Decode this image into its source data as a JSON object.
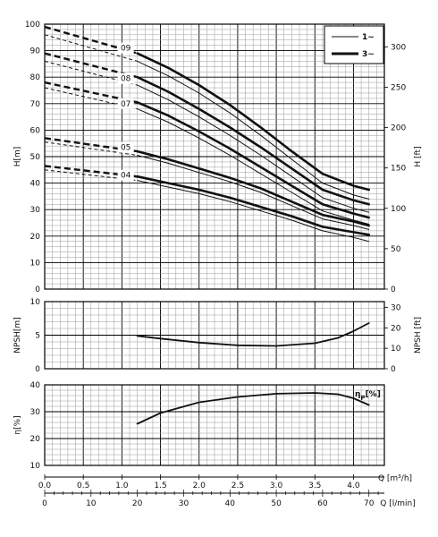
{
  "chart_data": [
    {
      "type": "line",
      "panel": "head",
      "ylabel_left": "H[m]",
      "ylabel_right": "H [ft]",
      "ylim": [
        0,
        100
      ],
      "yticks": [
        0,
        10,
        20,
        30,
        40,
        50,
        60,
        70,
        80,
        90,
        100
      ],
      "yticks_right": [
        0,
        50,
        100,
        150,
        200,
        250,
        300
      ],
      "xlim": [
        0,
        4.4
      ],
      "grid": true,
      "legend": {
        "position": "top-right",
        "entries": [
          {
            "label": "1~",
            "style": "thin"
          },
          {
            "label": "3~",
            "style": "thick"
          }
        ]
      },
      "series": [
        {
          "name": "09",
          "phase": "3~",
          "x": [
            1.2,
            1.6,
            2.0,
            2.4,
            2.8,
            3.2,
            3.6,
            4.0,
            4.2
          ],
          "y": [
            89,
            83.5,
            77,
            69.5,
            61,
            52,
            43.5,
            39,
            37.5
          ]
        },
        {
          "name": "09",
          "phase": "1~",
          "x": [
            1.2,
            1.6,
            2.0,
            2.4,
            2.8,
            3.2,
            3.6,
            4.0,
            4.2
          ],
          "y": [
            86,
            80.5,
            74,
            66.5,
            58,
            49,
            40,
            35.5,
            34
          ]
        },
        {
          "name": "08",
          "phase": "3~",
          "x": [
            1.2,
            1.6,
            2.0,
            2.4,
            2.8,
            3.2,
            3.6,
            4.0,
            4.2
          ],
          "y": [
            80,
            74.5,
            68,
            61,
            53.5,
            45.5,
            37.5,
            33.5,
            32
          ]
        },
        {
          "name": "08",
          "phase": "1~",
          "x": [
            1.2,
            1.6,
            2.0,
            2.4,
            2.8,
            3.2,
            3.6,
            4.0,
            4.2
          ],
          "y": [
            77,
            71.5,
            65,
            58,
            50.5,
            42.5,
            34.5,
            30.5,
            29
          ]
        },
        {
          "name": "07",
          "phase": "3~",
          "x": [
            1.2,
            1.6,
            2.0,
            2.4,
            2.8,
            3.2,
            3.6,
            4.0,
            4.2
          ],
          "y": [
            70.5,
            65.5,
            59.5,
            53,
            46,
            39,
            32,
            28.5,
            27
          ]
        },
        {
          "name": "07",
          "phase": "1~",
          "x": [
            1.2,
            1.6,
            2.0,
            2.4,
            2.8,
            3.2,
            3.6,
            4.0,
            4.2
          ],
          "y": [
            68,
            63,
            57,
            50.5,
            43.5,
            36.5,
            29.5,
            26,
            24.5
          ]
        },
        {
          "name": "05",
          "phase": "3~",
          "x": [
            1.2,
            1.6,
            2.0,
            2.4,
            2.8,
            3.2,
            3.6,
            4.0,
            4.2
          ],
          "y": [
            52,
            49,
            45.5,
            42,
            38,
            33,
            28,
            25.5,
            24
          ]
        },
        {
          "name": "05",
          "phase": "1~",
          "x": [
            1.2,
            1.6,
            2.0,
            2.4,
            2.8,
            3.2,
            3.6,
            4.0,
            4.2
          ],
          "y": [
            50.5,
            47.5,
            44,
            40.5,
            36.5,
            31.5,
            26.5,
            24,
            22.5
          ]
        },
        {
          "name": "04",
          "phase": "3~",
          "x": [
            1.2,
            1.6,
            2.0,
            2.4,
            2.8,
            3.2,
            3.6,
            4.0,
            4.2
          ],
          "y": [
            42.5,
            40,
            37.5,
            34.5,
            31,
            27.5,
            23.5,
            21.5,
            20.5
          ]
        },
        {
          "name": "04",
          "phase": "1~",
          "x": [
            1.2,
            1.6,
            2.0,
            2.4,
            2.8,
            3.2,
            3.6,
            4.0,
            4.2
          ],
          "y": [
            41,
            38.5,
            36,
            33,
            29.5,
            26,
            22,
            19.5,
            18
          ]
        }
      ],
      "dashed_extensions": [
        {
          "name": "09",
          "x": [
            0.0,
            1.2
          ],
          "y_thick": [
            99,
            89
          ],
          "y_thin": [
            96,
            86
          ]
        },
        {
          "name": "08",
          "x": [
            0.0,
            1.2
          ],
          "y_thick": [
            89,
            80
          ],
          "y_thin": [
            86,
            77
          ]
        },
        {
          "name": "07",
          "x": [
            0.0,
            1.2
          ],
          "y_thick": [
            78,
            70.5
          ],
          "y_thin": [
            76,
            68
          ]
        },
        {
          "name": "05",
          "x": [
            0.0,
            1.2
          ],
          "y_thick": [
            57,
            52
          ],
          "y_thin": [
            55.5,
            50.5
          ]
        },
        {
          "name": "04",
          "x": [
            0.0,
            1.2
          ],
          "y_thick": [
            46.5,
            42.5
          ],
          "y_thin": [
            45,
            41
          ]
        }
      ],
      "curve_labels": [
        {
          "text": "09",
          "x": 1.05,
          "y": 91
        },
        {
          "text": "08",
          "x": 1.05,
          "y": 79.5
        },
        {
          "text": "07",
          "x": 1.05,
          "y": 70
        },
        {
          "text": "05",
          "x": 1.05,
          "y": 53.5
        },
        {
          "text": "04",
          "x": 1.05,
          "y": 43
        }
      ]
    },
    {
      "type": "line",
      "panel": "npsh",
      "ylabel_left": "NPSH[m]",
      "ylabel_right": "NPSH [ft]",
      "ylim": [
        0,
        10
      ],
      "yticks": [
        0,
        5,
        10
      ],
      "yticks_right": [
        0,
        10,
        20,
        30
      ],
      "xlim": [
        0,
        4.4
      ],
      "grid": true,
      "series": [
        {
          "name": "NPSH",
          "x": [
            1.2,
            1.5,
            2.0,
            2.5,
            3.0,
            3.5,
            3.8,
            4.0,
            4.2
          ],
          "y": [
            4.9,
            4.5,
            3.9,
            3.5,
            3.4,
            3.8,
            4.6,
            5.6,
            6.8
          ]
        }
      ]
    },
    {
      "type": "line",
      "panel": "efficiency",
      "ylabel_left": "η[%]",
      "ylim": [
        10,
        40
      ],
      "yticks": [
        10,
        20,
        30,
        40
      ],
      "xlim": [
        0,
        4.4
      ],
      "grid": true,
      "annotation": "η_P[%]",
      "series": [
        {
          "name": "η_P",
          "x": [
            1.2,
            1.5,
            2.0,
            2.5,
            3.0,
            3.5,
            3.8,
            4.0,
            4.2
          ],
          "y": [
            25.5,
            29.5,
            33.5,
            35.5,
            36.7,
            37,
            36.5,
            35,
            32.5
          ]
        }
      ]
    }
  ],
  "x_axis": {
    "label_top": "Q [m³/h]",
    "label_bottom": "Q [l/min]",
    "ticks_m3h": [
      "0.0",
      "0.5",
      "1.0",
      "1.5",
      "2.0",
      "2.5",
      "3.0",
      "3.5",
      "4.0"
    ],
    "ticks_lmin": [
      "0",
      "10",
      "20",
      "30",
      "40",
      "50",
      "60",
      "70"
    ]
  },
  "colors": {
    "line": "#111111",
    "grid": "#000000",
    "grid_minor": "#9a9a9a",
    "background": "#ffffff"
  }
}
